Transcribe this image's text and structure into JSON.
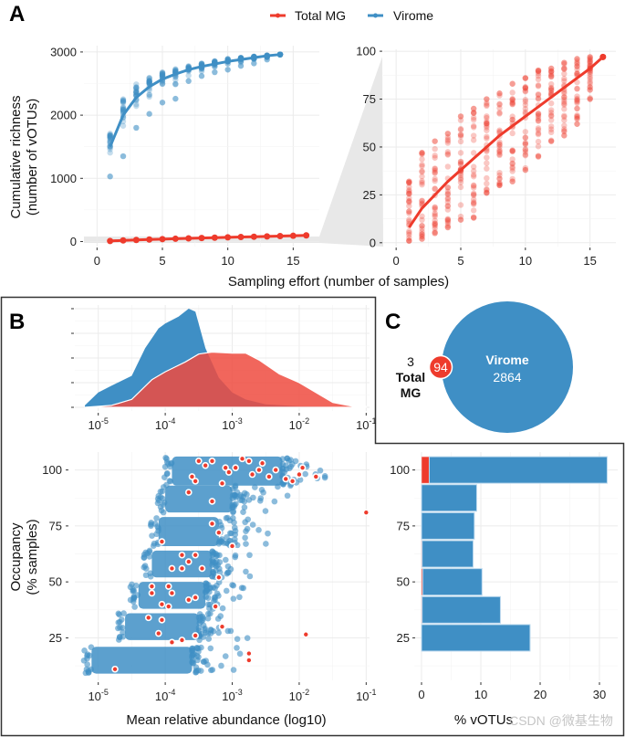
{
  "colors": {
    "total_mg": "#EE3B2C",
    "virome": "#3F8FC5",
    "total_mg_density": "#EE4B3F",
    "overlap": "#C94545"
  },
  "legend": {
    "items": [
      {
        "label": "Total MG",
        "color": "#EE3B2C"
      },
      {
        "label": "Virome",
        "color": "#3F8FC5"
      }
    ]
  },
  "panels": {
    "a": "A",
    "b": "B",
    "c": "C"
  },
  "watermark": "CSDN @微基生物",
  "chart_data": [
    {
      "id": "A-left",
      "type": "scatter",
      "title": "",
      "xlabel": "Sampling effort (number of samples)",
      "ylabel": "Cumulative richness\n(number of vOTUs)",
      "ylabel_lines": [
        "Cumulative richness",
        "(number of vOTUs)"
      ],
      "xlim": [
        -1,
        17
      ],
      "ylim": [
        -80,
        3100
      ],
      "xticks": [
        0,
        5,
        10,
        15
      ],
      "yticks": [
        0,
        1000,
        2000,
        3000
      ],
      "grid": true,
      "series": [
        {
          "name": "Virome",
          "x": [
            1,
            2,
            3,
            4,
            5,
            6,
            7,
            8,
            9,
            10,
            11,
            12,
            13,
            14
          ],
          "mean": [
            1500,
            2000,
            2280,
            2450,
            2570,
            2650,
            2720,
            2770,
            2810,
            2850,
            2880,
            2910,
            2940,
            2960
          ],
          "spread_low": [
            1030,
            1350,
            1800,
            2020,
            2200,
            2260,
            2540,
            2620,
            2680,
            2720,
            2780,
            2820,
            2880,
            2960
          ],
          "spread_high": [
            1710,
            2260,
            2500,
            2600,
            2680,
            2730,
            2780,
            2820,
            2860,
            2890,
            2910,
            2930,
            2950,
            2960
          ]
        },
        {
          "name": "Total MG",
          "x": [
            1,
            2,
            3,
            4,
            5,
            6,
            7,
            8,
            9,
            10,
            11,
            12,
            13,
            14,
            15,
            16
          ],
          "mean": [
            8,
            18,
            25,
            32,
            38,
            44,
            50,
            56,
            61,
            66,
            71,
            76,
            81,
            86,
            91,
            97
          ]
        }
      ]
    },
    {
      "id": "A-right",
      "type": "scatter",
      "title": "",
      "xlabel": "",
      "ylabel": "",
      "xlim": [
        -1,
        17
      ],
      "ylim": [
        -2,
        101
      ],
      "xticks": [
        0,
        5,
        10,
        15
      ],
      "yticks": [
        0,
        25,
        50,
        75,
        100
      ],
      "grid": true,
      "series": [
        {
          "name": "Total MG",
          "x": [
            1,
            2,
            3,
            4,
            5,
            6,
            7,
            8,
            9,
            10,
            11,
            12,
            13,
            14,
            15,
            16
          ],
          "mean": [
            8,
            18,
            25,
            32,
            38,
            44,
            50,
            56,
            61,
            66,
            71,
            76,
            81,
            86,
            91,
            97
          ],
          "spread_low": [
            1,
            2,
            5,
            8,
            12,
            13,
            26,
            30,
            32,
            38,
            45,
            53,
            56,
            62,
            75,
            97
          ],
          "spread_high": [
            32,
            47,
            53,
            57,
            66,
            70,
            75,
            78,
            83,
            86,
            90,
            91,
            94,
            96,
            97,
            97
          ]
        }
      ]
    },
    {
      "id": "B-top",
      "type": "area",
      "title": "",
      "xlabel": "",
      "ylabel": "",
      "xscale": "log10",
      "xlim_log10": [
        -5.35,
        -0.95
      ],
      "xticks_log10": [
        -5,
        -4,
        -3,
        -2,
        -1
      ],
      "xtick_labels": [
        "10^-5",
        "10^-4",
        "10^-3",
        "10^-2",
        "10^-1"
      ],
      "grid": true,
      "series": [
        {
          "name": "Virome",
          "x_log10": [
            -5.2,
            -5.0,
            -4.8,
            -4.5,
            -4.3,
            -4.1,
            -4.0,
            -3.8,
            -3.65,
            -3.55,
            -3.4,
            -3.2,
            -3.0,
            -2.8,
            -2.5,
            -2.0,
            -1.5,
            -1.0
          ],
          "density": [
            0.02,
            0.15,
            0.22,
            0.32,
            0.6,
            0.8,
            0.85,
            0.92,
            1.0,
            0.97,
            0.6,
            0.3,
            0.15,
            0.08,
            0.03,
            0.01,
            0.005,
            0.0
          ]
        },
        {
          "name": "Total MG",
          "x_log10": [
            -5.2,
            -4.8,
            -4.5,
            -4.2,
            -4.0,
            -3.7,
            -3.5,
            -3.3,
            -3.0,
            -2.8,
            -2.6,
            -2.3,
            -2.0,
            -1.7,
            -1.5,
            -1.2,
            -1.0
          ],
          "density": [
            0.0,
            0.02,
            0.08,
            0.28,
            0.36,
            0.46,
            0.54,
            0.56,
            0.55,
            0.55,
            0.48,
            0.34,
            0.25,
            0.13,
            0.05,
            0.01,
            0.01
          ]
        }
      ]
    },
    {
      "id": "B-bottom",
      "type": "scatter",
      "title": "",
      "xlabel": "Mean relative abundance (log10)",
      "ylabel": "Occupancy\n(% samples)",
      "ylabel_lines": [
        "Occupancy",
        "(% samples)"
      ],
      "xscale": "log10",
      "xlim_log10": [
        -5.35,
        -0.95
      ],
      "xticks_log10": [
        -5,
        -4,
        -3,
        -2,
        -1
      ],
      "xtick_labels": [
        "10^-5",
        "10^-4",
        "10^-3",
        "10^-2",
        "10^-1"
      ],
      "ylim": [
        6,
        108
      ],
      "yticks": [
        25,
        50,
        75,
        100
      ],
      "grid": true,
      "occupancy_bands": [
        {
          "occupancy": 100,
          "virome_range_log10": [
            -3.9,
            -2.25
          ],
          "y_range": [
            93,
            106
          ]
        },
        {
          "occupancy": 87.5,
          "virome_range_log10": [
            -4.0,
            -3.0
          ],
          "y_range": [
            81,
            93
          ]
        },
        {
          "occupancy": 75,
          "virome_range_log10": [
            -4.1,
            -3.2
          ],
          "y_range": [
            66,
            79
          ]
        },
        {
          "occupancy": 62.5,
          "virome_range_log10": [
            -4.2,
            -3.3
          ],
          "y_range": [
            52,
            64
          ]
        },
        {
          "occupancy": 50,
          "virome_range_log10": [
            -4.4,
            -3.4
          ],
          "y_range": [
            38,
            50
          ]
        },
        {
          "occupancy": 37.5,
          "virome_range_log10": [
            -4.6,
            -3.5
          ],
          "y_range": [
            24,
            36
          ]
        },
        {
          "occupancy": 25,
          "virome_range_log10": [
            -5.1,
            -3.6
          ],
          "y_range": [
            9,
            21
          ]
        }
      ],
      "total_mg_points": [
        {
          "x_log10": -3.5,
          "y": 104
        },
        {
          "x_log10": -3.4,
          "y": 102
        },
        {
          "x_log10": -3.3,
          "y": 104
        },
        {
          "x_log10": -3.1,
          "y": 101
        },
        {
          "x_log10": -3.05,
          "y": 99
        },
        {
          "x_log10": -2.95,
          "y": 101
        },
        {
          "x_log10": -2.85,
          "y": 105
        },
        {
          "x_log10": -2.75,
          "y": 104
        },
        {
          "x_log10": -2.7,
          "y": 98
        },
        {
          "x_log10": -2.6,
          "y": 100
        },
        {
          "x_log10": -2.55,
          "y": 103
        },
        {
          "x_log10": -2.45,
          "y": 97
        },
        {
          "x_log10": -2.35,
          "y": 100
        },
        {
          "x_log10": -2.2,
          "y": 96
        },
        {
          "x_log10": -2.1,
          "y": 95
        },
        {
          "x_log10": -2.0,
          "y": 98
        },
        {
          "x_log10": -1.95,
          "y": 101
        },
        {
          "x_log10": -1.75,
          "y": 97
        },
        {
          "x_log10": -3.6,
          "y": 97
        },
        {
          "x_log10": -3.55,
          "y": 95
        },
        {
          "x_log10": -3.15,
          "y": 94
        },
        {
          "x_log10": -1.0,
          "y": 81
        },
        {
          "x_log10": -3.65,
          "y": 90
        },
        {
          "x_log10": -3.3,
          "y": 86
        },
        {
          "x_log10": -3.3,
          "y": 76
        },
        {
          "x_log10": -3.2,
          "y": 72
        },
        {
          "x_log10": -4.05,
          "y": 68
        },
        {
          "x_log10": -3.0,
          "y": 66
        },
        {
          "x_log10": -3.75,
          "y": 62
        },
        {
          "x_log10": -3.55,
          "y": 62
        },
        {
          "x_log10": -3.65,
          "y": 59
        },
        {
          "x_log10": -3.9,
          "y": 56
        },
        {
          "x_log10": -3.45,
          "y": 56
        },
        {
          "x_log10": -3.75,
          "y": 56
        },
        {
          "x_log10": -3.2,
          "y": 52
        },
        {
          "x_log10": -4.2,
          "y": 48
        },
        {
          "x_log10": -3.95,
          "y": 48
        },
        {
          "x_log10": -4.2,
          "y": 45
        },
        {
          "x_log10": -3.9,
          "y": 45
        },
        {
          "x_log10": -3.55,
          "y": 43
        },
        {
          "x_log10": -3.65,
          "y": 42
        },
        {
          "x_log10": -4.05,
          "y": 40
        },
        {
          "x_log10": -3.95,
          "y": 39
        },
        {
          "x_log10": -3.25,
          "y": 39
        },
        {
          "x_log10": -4.25,
          "y": 34
        },
        {
          "x_log10": -4.05,
          "y": 33
        },
        {
          "x_log10": -3.15,
          "y": 30
        },
        {
          "x_log10": -4.1,
          "y": 27
        },
        {
          "x_log10": -3.55,
          "y": 26
        },
        {
          "x_log10": -3.75,
          "y": 24
        },
        {
          "x_log10": -3.9,
          "y": 23
        },
        {
          "x_log10": -1.9,
          "y": 26.5
        },
        {
          "x_log10": -2.75,
          "y": 18
        },
        {
          "x_log10": -2.75,
          "y": 15
        },
        {
          "x_log10": -4.75,
          "y": 11
        }
      ]
    },
    {
      "id": "B-right",
      "type": "bar",
      "orientation": "horizontal",
      "title": "",
      "xlabel": "% vOTUs",
      "ylabel": "",
      "categories": [
        100,
        87.5,
        75,
        62.5,
        50,
        37.5,
        25
      ],
      "ytick_labels": [
        "100",
        "75",
        "50",
        "25"
      ],
      "yticks": [
        100,
        75,
        50,
        25
      ],
      "xlim": [
        -0.5,
        33
      ],
      "xticks": [
        0,
        10,
        20,
        30
      ],
      "grid": true,
      "stacked": true,
      "series": [
        {
          "name": "Total MG",
          "values": [
            1.3,
            0.0,
            0.0,
            0.1,
            0.2,
            0.1,
            0.0
          ]
        },
        {
          "name": "Virome",
          "values": [
            30.0,
            9.3,
            8.9,
            8.6,
            10.0,
            13.2,
            18.3
          ]
        }
      ]
    },
    {
      "id": "C",
      "type": "venn",
      "sets": [
        {
          "name": "Virome",
          "label": "Virome",
          "unique": "2864",
          "color": "#3F8FC5"
        },
        {
          "name": "Total MG",
          "label_lines": [
            "Total",
            "MG"
          ],
          "unique": "3",
          "color": "#EE3B2C"
        }
      ],
      "intersection": "94"
    }
  ]
}
